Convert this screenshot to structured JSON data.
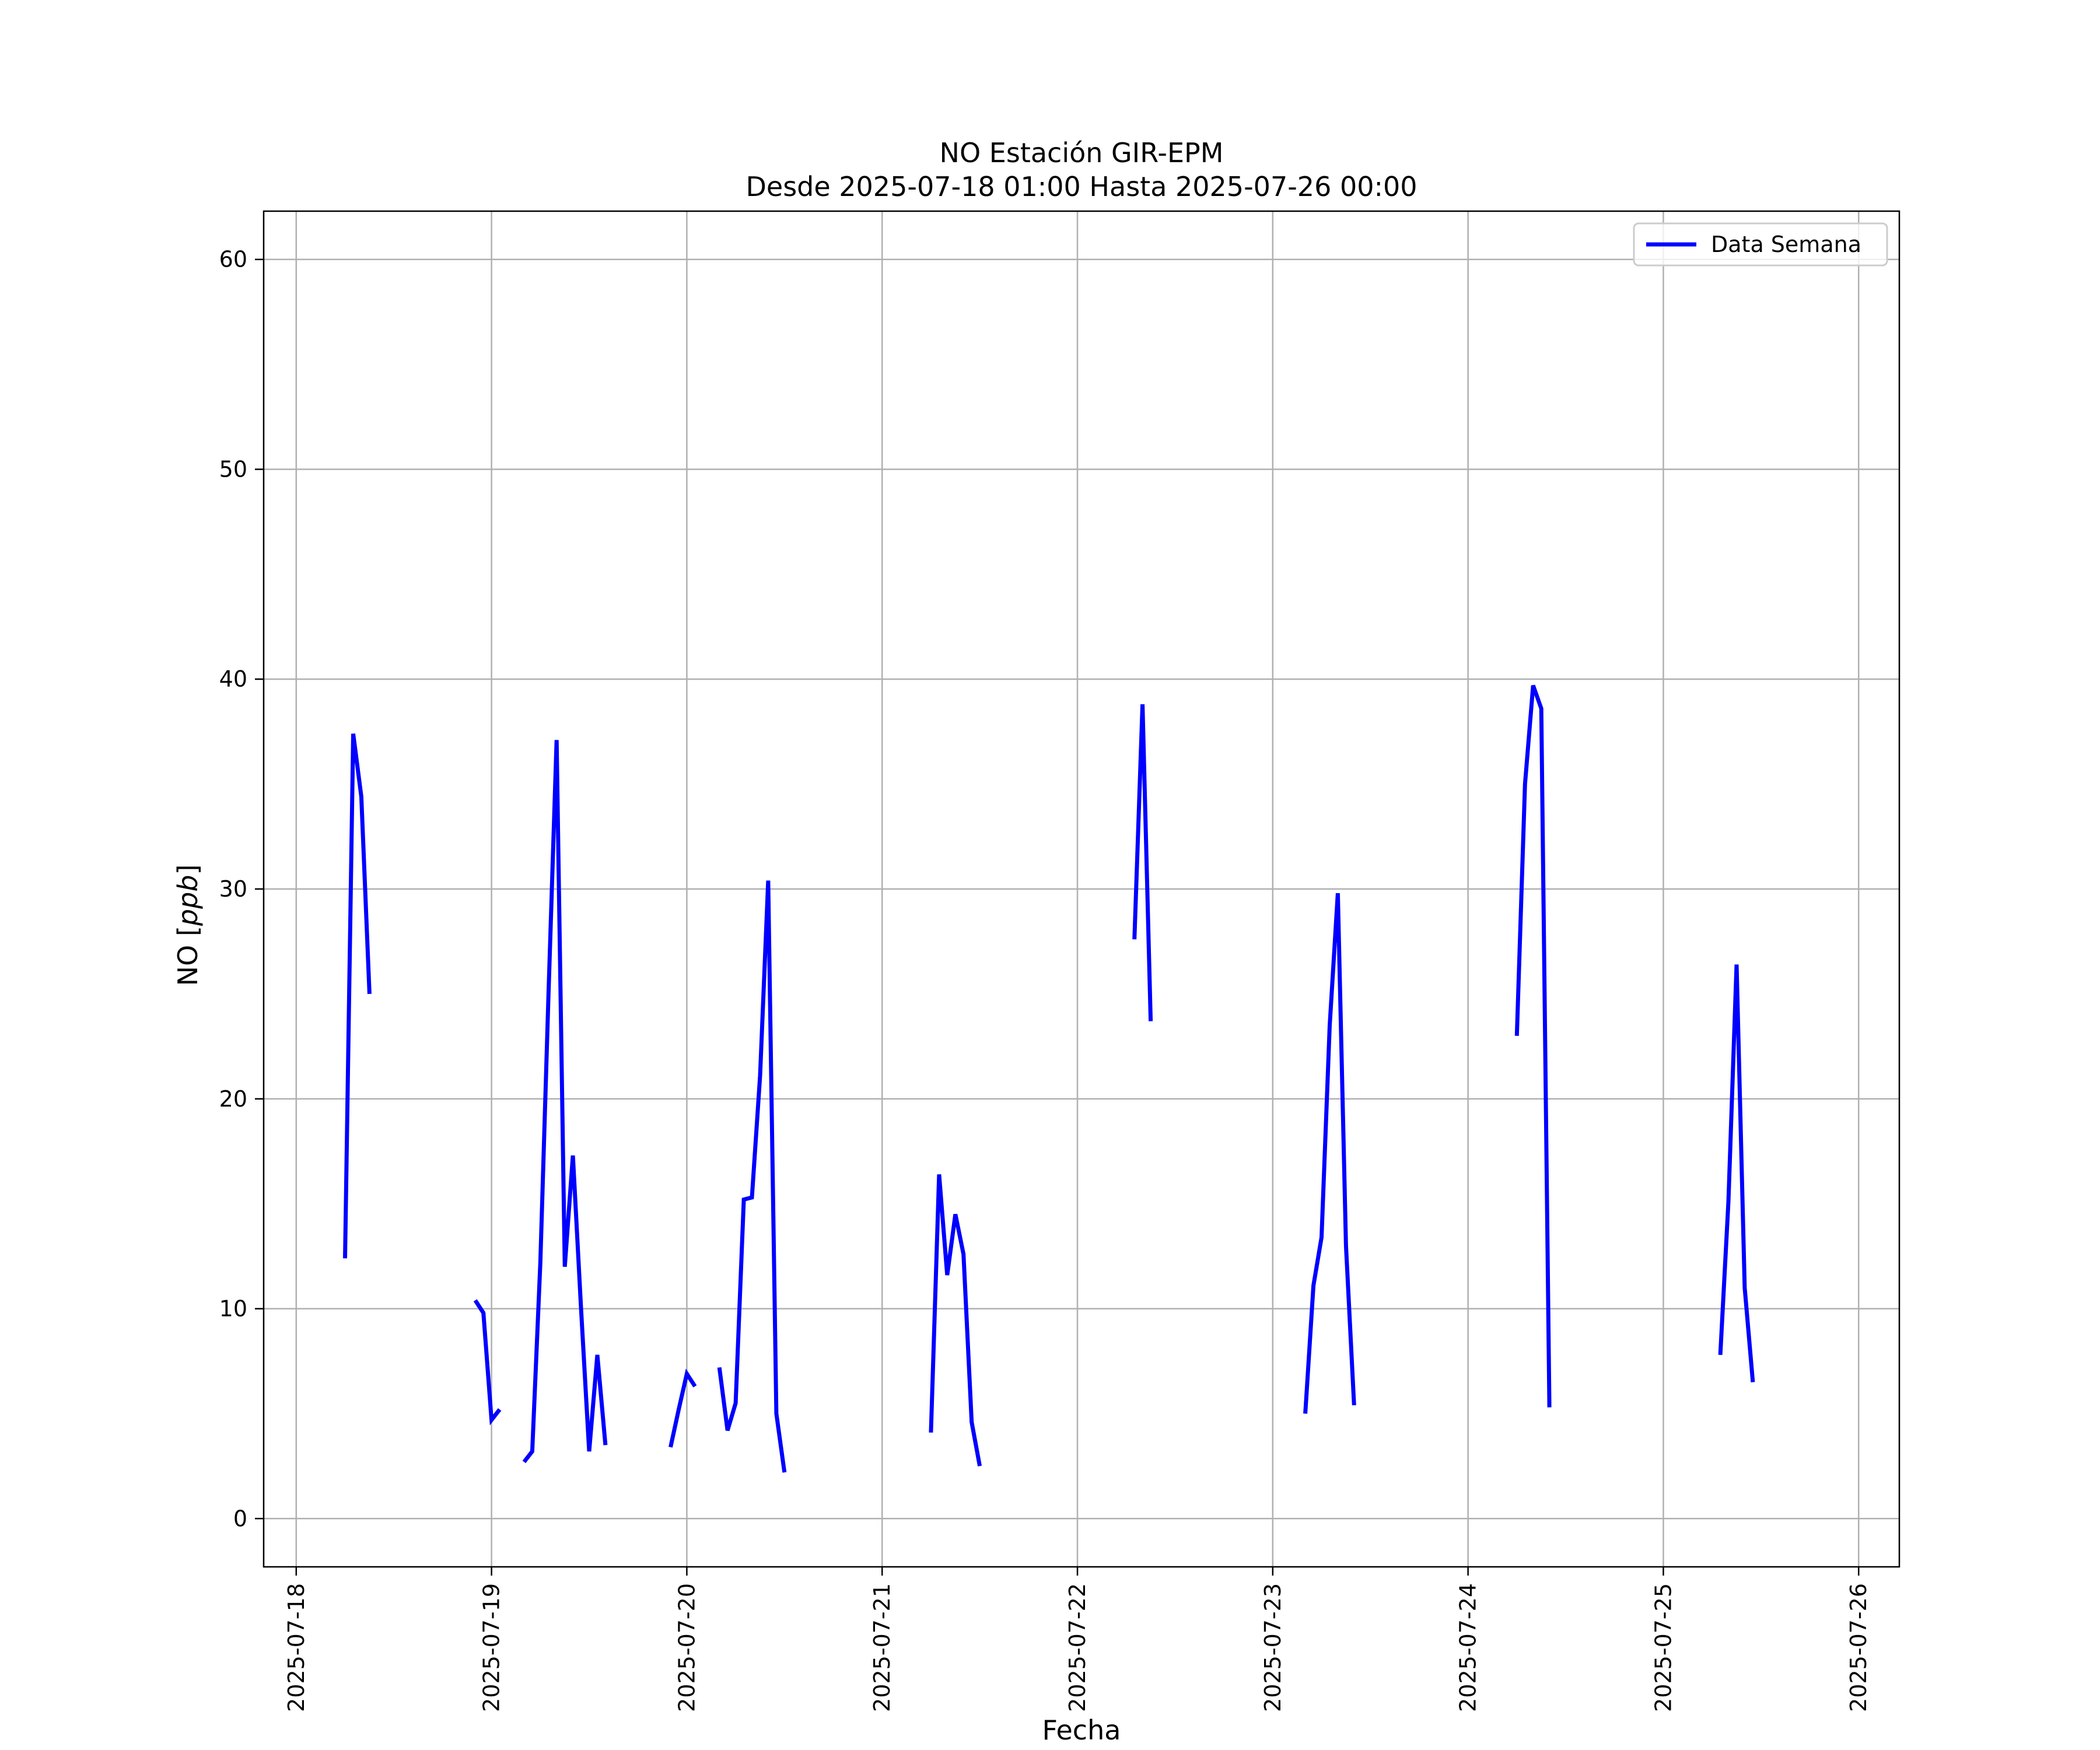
{
  "chart_data": {
    "type": "line",
    "title": "NO Estación GIR-EPM",
    "subtitle": "Desde 2025-07-18 01:00 Hasta 2025-07-26 00:00",
    "xlabel": "Fecha",
    "ylabel": "NO [ppb]",
    "xlim": [
      "2025-07-17 20:00",
      "2025-07-26 05:00"
    ],
    "ylim": [
      -2.3,
      62.3
    ],
    "x_ticks": [
      "2025-07-18",
      "2025-07-19",
      "2025-07-20",
      "2025-07-21",
      "2025-07-22",
      "2025-07-23",
      "2025-07-24",
      "2025-07-25",
      "2025-07-26"
    ],
    "y_ticks": [
      0,
      10,
      20,
      30,
      40,
      50,
      60
    ],
    "grid": true,
    "legend_position": "top-right",
    "series": [
      {
        "name": "Data Semana",
        "color": "#0000ff",
        "segments": [
          [
            [
              "2025-07-18 06:00",
              12.4
            ],
            [
              "2025-07-18 07:00",
              37.4
            ],
            [
              "2025-07-18 08:00",
              34.4
            ],
            [
              "2025-07-18 09:00",
              25.0
            ]
          ],
          [
            [
              "2025-07-18 22:00",
              10.4
            ],
            [
              "2025-07-18 23:00",
              9.8
            ],
            [
              "2025-07-19 00:00",
              4.7
            ],
            [
              "2025-07-19 01:00",
              5.2
            ]
          ],
          [
            [
              "2025-07-19 04:00",
              2.7
            ],
            [
              "2025-07-19 05:00",
              3.2
            ],
            [
              "2025-07-19 06:00",
              12.2
            ],
            [
              "2025-07-19 07:00",
              25.0
            ],
            [
              "2025-07-19 08:00",
              37.1
            ],
            [
              "2025-07-19 09:00",
              12.0
            ],
            [
              "2025-07-19 10:00",
              17.3
            ],
            [
              "2025-07-19 11:00",
              10.0
            ],
            [
              "2025-07-19 12:00",
              3.2
            ],
            [
              "2025-07-19 13:00",
              7.8
            ],
            [
              "2025-07-19 14:00",
              3.5
            ]
          ],
          [
            [
              "2025-07-19 22:00",
              3.4
            ],
            [
              "2025-07-19 23:00",
              5.2
            ],
            [
              "2025-07-20 00:00",
              6.9
            ],
            [
              "2025-07-20 01:00",
              6.3
            ]
          ],
          [
            [
              "2025-07-20 04:00",
              7.2
            ],
            [
              "2025-07-20 05:00",
              4.2
            ],
            [
              "2025-07-20 06:00",
              5.5
            ],
            [
              "2025-07-20 07:00",
              15.2
            ],
            [
              "2025-07-20 08:00",
              15.3
            ],
            [
              "2025-07-20 09:00",
              21.1
            ],
            [
              "2025-07-20 10:00",
              30.4
            ],
            [
              "2025-07-20 11:00",
              5.0
            ],
            [
              "2025-07-20 12:00",
              2.2
            ]
          ],
          [
            [
              "2025-07-21 06:00",
              4.1
            ],
            [
              "2025-07-21 07:00",
              16.4
            ],
            [
              "2025-07-21 08:00",
              11.6
            ],
            [
              "2025-07-21 09:00",
              14.5
            ],
            [
              "2025-07-21 10:00",
              12.6
            ],
            [
              "2025-07-21 11:00",
              4.6
            ],
            [
              "2025-07-21 12:00",
              2.5
            ]
          ],
          [
            [
              "2025-07-22 07:00",
              27.6
            ],
            [
              "2025-07-22 08:00",
              38.8
            ],
            [
              "2025-07-22 09:00",
              23.7
            ]
          ],
          [
            [
              "2025-07-23 04:00",
              5.0
            ],
            [
              "2025-07-23 05:00",
              11.1
            ],
            [
              "2025-07-23 06:00",
              13.4
            ],
            [
              "2025-07-23 07:00",
              23.5
            ],
            [
              "2025-07-23 08:00",
              29.8
            ],
            [
              "2025-07-23 09:00",
              13.0
            ],
            [
              "2025-07-23 10:00",
              5.4
            ]
          ],
          [
            [
              "2025-07-24 06:00",
              23.0
            ],
            [
              "2025-07-24 07:00",
              35.0
            ],
            [
              "2025-07-24 08:00",
              39.7
            ],
            [
              "2025-07-24 09:00",
              38.6
            ],
            [
              "2025-07-24 10:00",
              5.3
            ]
          ],
          [
            [
              "2025-07-25 07:00",
              7.8
            ],
            [
              "2025-07-25 08:00",
              15.1
            ],
            [
              "2025-07-25 09:00",
              26.4
            ],
            [
              "2025-07-25 10:00",
              11.0
            ],
            [
              "2025-07-25 11:00",
              6.5
            ]
          ]
        ]
      }
    ]
  }
}
